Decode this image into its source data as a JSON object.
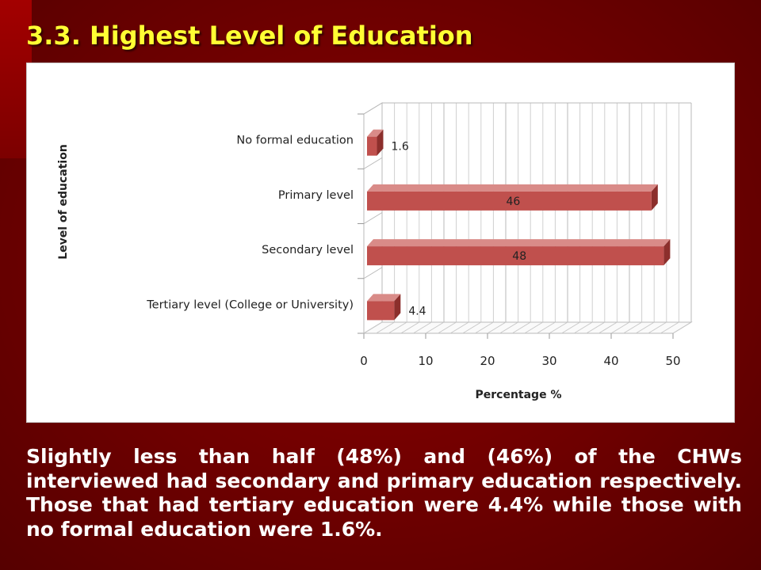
{
  "slide": {
    "title": "3.3. Highest Level of Education",
    "body": "Slightly less than half (48%) and (46%) of the CHWs interviewed had secondary and primary education respectively.  Those that had tertiary education were 4.4% while those with no formal education were 1.6%."
  },
  "colors": {
    "bar_front": "#c0504d",
    "bar_top": "#d98b88",
    "bar_side": "#8c2f2c",
    "title": "#ffff33",
    "background": "#7a0000"
  },
  "chart_data": {
    "type": "bar",
    "orientation": "horizontal",
    "style": "3d",
    "categories": [
      "No formal education",
      "Primary level",
      "Secondary level",
      "Tertiary level (College or University)"
    ],
    "values": [
      1.6,
      46,
      48,
      4.4
    ],
    "data_labels": [
      "1.6",
      "46",
      "48",
      "4.4"
    ],
    "xlabel": "Percentage %",
    "ylabel": "Level of education",
    "xlim": [
      0,
      50
    ],
    "xticks": [
      0,
      10,
      20,
      30,
      40,
      50
    ],
    "grid": true,
    "legend": "none"
  }
}
